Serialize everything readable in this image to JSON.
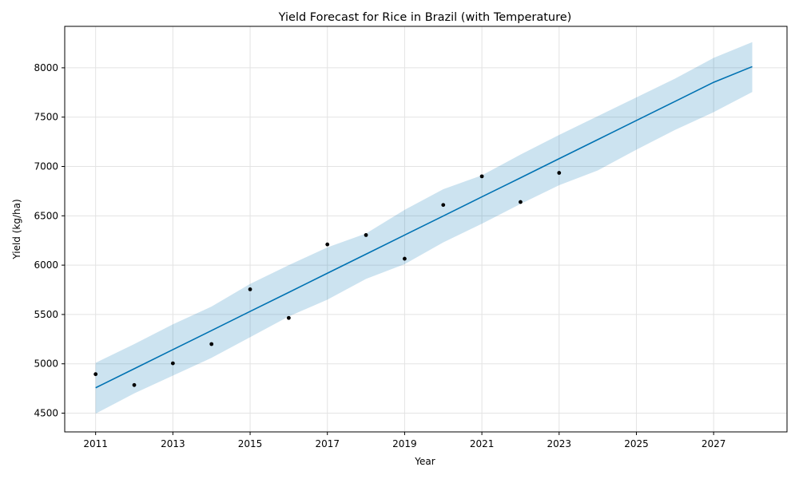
{
  "chart_data": {
    "type": "line",
    "title": "Yield Forecast for Rice in Brazil (with Temperature)",
    "xlabel": "Year",
    "ylabel": "Yield (kg/ha)",
    "xlim": [
      2010.2,
      2028.9
    ],
    "ylim": [
      4310,
      8420
    ],
    "x_ticks": [
      2011,
      2013,
      2015,
      2017,
      2019,
      2021,
      2023,
      2025,
      2027
    ],
    "y_ticks": [
      4500,
      5000,
      5500,
      6000,
      6500,
      7000,
      7500,
      8000
    ],
    "grid": true,
    "colors": {
      "forecast_line": "#0072b2",
      "interval_fill": "#0072b2",
      "observed_points": "#000000"
    },
    "forecast": {
      "x": [
        2011,
        2012,
        2013,
        2014,
        2015,
        2016,
        2017,
        2018,
        2019,
        2020,
        2021,
        2022,
        2023,
        2024,
        2025,
        2026,
        2027,
        2028
      ],
      "yhat": [
        4757,
        4950,
        5144,
        5337,
        5531,
        5724,
        5918,
        6111,
        6305,
        6498,
        6692,
        6885,
        7079,
        7272,
        7466,
        7659,
        7853,
        8012
      ],
      "lower": [
        4495,
        4700,
        4880,
        5060,
        5270,
        5480,
        5650,
        5860,
        6010,
        6230,
        6420,
        6620,
        6810,
        6960,
        7170,
        7370,
        7550,
        7755
      ],
      "upper": [
        5010,
        5200,
        5400,
        5580,
        5810,
        6000,
        6180,
        6320,
        6560,
        6770,
        6910,
        7120,
        7320,
        7510,
        7700,
        7890,
        8100,
        8260
      ]
    },
    "observed": {
      "x": [
        2011,
        2012,
        2013,
        2014,
        2015,
        2016,
        2017,
        2018,
        2019,
        2020,
        2021,
        2022,
        2023
      ],
      "y": [
        4895,
        4785,
        5005,
        5200,
        5755,
        5465,
        6210,
        6305,
        6065,
        6610,
        6900,
        6640,
        6935
      ]
    }
  }
}
